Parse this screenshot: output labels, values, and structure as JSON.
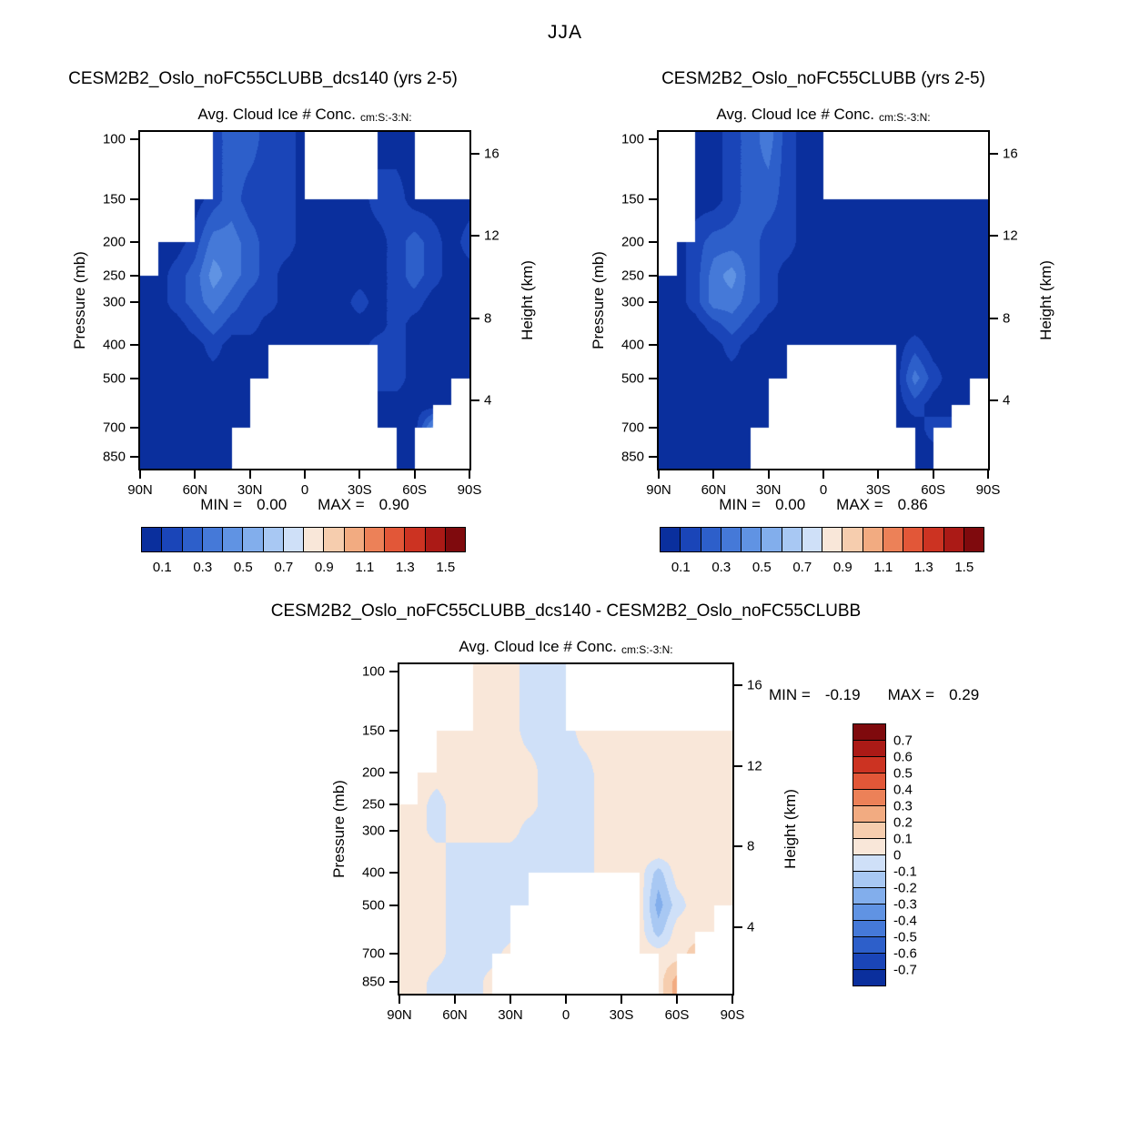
{
  "figure_title": "JJA",
  "chart_data": {
    "type": "heatmap",
    "season": "JJA",
    "variable": "Avg. Cloud Ice # Conc.",
    "units": "cm:S:-3:N:",
    "ylabel": "Pressure (mb)",
    "y2label": "Height (km)",
    "x_ticks": [
      "90N",
      "60N",
      "30N",
      "0",
      "30S",
      "60S",
      "90S"
    ],
    "pressure_ticks": [
      100,
      150,
      200,
      250,
      300,
      400,
      500,
      700,
      850
    ],
    "height_ticks": [
      16,
      12,
      8,
      4
    ],
    "p_top": 95,
    "p_bot": 920,
    "bin_size": 0.1,
    "colormap": [
      "#0a2f9d",
      "#1a45b8",
      "#2d5fca",
      "#4579d8",
      "#6093e3",
      "#82aeec",
      "#a8c8f3",
      "#cfe0f8",
      "#f9e7d9",
      "#f6cdae",
      "#f2ab81",
      "#ec8158",
      "#e25738",
      "#cc3322",
      "#ab1a16",
      "#7f0a0d"
    ],
    "cbar_labels": [
      "0.1",
      "0.3",
      "0.5",
      "0.7",
      "0.9",
      "1.1",
      "1.3",
      "1.5"
    ],
    "diff_cbar_labels": [
      "0.7",
      "0.6",
      "0.5",
      "0.4",
      "0.3",
      "0.2",
      "0.1",
      "0",
      "-0.1",
      "-0.2",
      "-0.3",
      "-0.4",
      "-0.5",
      "-0.6",
      "-0.7"
    ],
    "grid_lats": [
      90,
      80,
      70,
      60,
      50,
      40,
      30,
      20,
      10,
      0,
      -10,
      -20,
      -30,
      -40,
      -50,
      -60,
      -70,
      -80,
      -90
    ],
    "grid_levels": [
      100,
      150,
      200,
      250,
      300,
      350,
      400,
      500,
      600,
      700,
      850
    ],
    "panels": [
      {
        "id": "a",
        "title": "CESM2B2_Oslo_noFC55CLUBB_dcs140 (yrs 2-5)",
        "subtitle": "Avg. Cloud Ice # Conc.",
        "units": "cm:S:-3:N:",
        "min_label": "MIN =",
        "min_value": "0.00",
        "max_label": "MAX =",
        "max_value": "0.90",
        "bin_start": 0.1,
        "values": [
          [
            null,
            null,
            null,
            null,
            0.15,
            0.25,
            0.25,
            0.15,
            0.15,
            0.05,
            null,
            null,
            null,
            0.05,
            0.05,
            0.05,
            null,
            null,
            null
          ],
          [
            null,
            null,
            null,
            0.05,
            0.15,
            0.25,
            0.15,
            0.15,
            0.15,
            0.05,
            0.05,
            0.05,
            0.05,
            0.15,
            0.15,
            0.05,
            0.05,
            0.05,
            0.05
          ],
          [
            null,
            0.05,
            0.05,
            0.15,
            0.35,
            0.35,
            0.25,
            0.15,
            0.15,
            0.05,
            0.05,
            0.05,
            0.05,
            0.05,
            0.15,
            0.25,
            0.15,
            0.05,
            0.15
          ],
          [
            0.05,
            0.05,
            0.15,
            0.25,
            0.45,
            0.35,
            0.25,
            0.15,
            0.05,
            0.05,
            0.05,
            0.05,
            0.05,
            0.05,
            0.15,
            0.25,
            0.15,
            0.05,
            0.05
          ],
          [
            0.05,
            0.05,
            0.15,
            0.25,
            0.35,
            0.25,
            0.15,
            0.15,
            0.05,
            0.05,
            0.05,
            0.05,
            0.15,
            0.05,
            0.15,
            0.15,
            0.05,
            0.05,
            0.05
          ],
          [
            0.05,
            0.05,
            0.05,
            0.15,
            0.25,
            0.15,
            0.15,
            0.05,
            0.05,
            0.05,
            0.05,
            0.05,
            0.05,
            0.05,
            0.15,
            0.05,
            0.05,
            0.05,
            0.05
          ],
          [
            0.05,
            0.05,
            0.05,
            0.05,
            0.15,
            0.05,
            0.05,
            0.05,
            0.05,
            0.05,
            0.05,
            0.05,
            0.05,
            0.15,
            0.15,
            0.05,
            0.05,
            0.05,
            0.05
          ],
          [
            0.05,
            0.05,
            0.05,
            0.05,
            0.05,
            0.05,
            0.05,
            0.05,
            null,
            null,
            null,
            null,
            null,
            0.15,
            0.15,
            0.05,
            0.05,
            0.05,
            0.05
          ],
          [
            0.05,
            0.05,
            0.05,
            0.05,
            0.05,
            0.05,
            0.05,
            null,
            null,
            null,
            null,
            null,
            null,
            0.05,
            0.05,
            0.05,
            0.05,
            0.05,
            null
          ],
          [
            0.05,
            0.05,
            0.05,
            0.05,
            0.05,
            0.05,
            0.05,
            null,
            null,
            null,
            null,
            null,
            null,
            0.05,
            0.05,
            0.05,
            0.45,
            null,
            null
          ],
          [
            0.05,
            0.05,
            0.05,
            0.05,
            0.05,
            0.05,
            null,
            null,
            null,
            null,
            null,
            null,
            null,
            null,
            0.05,
            0.05,
            null,
            null,
            null
          ]
        ]
      },
      {
        "id": "b",
        "title": "CESM2B2_Oslo_noFC55CLUBB (yrs 2-5)",
        "subtitle": "Avg. Cloud Ice # Conc.",
        "units": "cm:S:-3:N:",
        "min_label": "MIN =",
        "min_value": "0.00",
        "max_label": "MAX =",
        "max_value": "0.86",
        "bin_start": 0.1,
        "values": [
          [
            null,
            null,
            0.05,
            0.05,
            0.15,
            0.25,
            0.35,
            0.15,
            0.05,
            0.05,
            null,
            null,
            null,
            null,
            null,
            null,
            null,
            null,
            null
          ],
          [
            null,
            null,
            0.05,
            0.05,
            0.15,
            0.25,
            0.25,
            0.15,
            0.05,
            0.05,
            0.05,
            0.05,
            0.05,
            0.05,
            0.05,
            0.05,
            0.05,
            0.05,
            0.05
          ],
          [
            null,
            0.05,
            0.15,
            0.25,
            0.25,
            0.25,
            0.15,
            0.15,
            0.05,
            0.05,
            0.05,
            0.05,
            0.05,
            0.05,
            0.05,
            0.05,
            0.05,
            0.05,
            0.05
          ],
          [
            0.05,
            0.05,
            0.15,
            0.35,
            0.45,
            0.25,
            0.15,
            0.05,
            0.05,
            0.05,
            0.05,
            0.05,
            0.05,
            0.05,
            0.05,
            0.05,
            0.05,
            0.05,
            0.05
          ],
          [
            0.05,
            0.05,
            0.15,
            0.35,
            0.35,
            0.25,
            0.15,
            0.05,
            0.05,
            0.05,
            0.05,
            0.05,
            0.05,
            0.05,
            0.05,
            0.05,
            0.05,
            0.05,
            0.05
          ],
          [
            0.05,
            0.05,
            0.05,
            0.15,
            0.25,
            0.15,
            0.05,
            0.05,
            0.05,
            0.05,
            0.05,
            0.05,
            0.05,
            0.05,
            0.05,
            0.05,
            0.05,
            0.05,
            0.05
          ],
          [
            0.05,
            0.05,
            0.05,
            0.05,
            0.15,
            0.05,
            0.05,
            0.05,
            0.05,
            0.05,
            0.05,
            0.05,
            0.05,
            0.05,
            0.15,
            0.05,
            0.05,
            0.05,
            0.05
          ],
          [
            0.05,
            0.05,
            0.05,
            0.05,
            0.05,
            0.05,
            0.05,
            0.05,
            null,
            null,
            null,
            null,
            null,
            0.05,
            0.35,
            0.15,
            0.05,
            0.05,
            0.05
          ],
          [
            0.05,
            0.05,
            0.05,
            0.05,
            0.05,
            0.05,
            0.05,
            null,
            null,
            null,
            null,
            null,
            null,
            0.05,
            0.15,
            0.05,
            0.05,
            0.05,
            null
          ],
          [
            0.05,
            0.05,
            0.05,
            0.05,
            0.05,
            0.05,
            0.05,
            null,
            null,
            null,
            null,
            null,
            null,
            0.05,
            0.05,
            0.15,
            0.15,
            null,
            null
          ],
          [
            0.05,
            0.05,
            0.05,
            0.05,
            0.05,
            0.05,
            null,
            null,
            null,
            null,
            null,
            null,
            null,
            null,
            0.05,
            0.05,
            null,
            null,
            null
          ]
        ]
      },
      {
        "id": "diff",
        "title": "CESM2B2_Oslo_noFC55CLUBB_dcs140 - CESM2B2_Oslo_noFC55CLUBB",
        "subtitle": "Avg. Cloud Ice # Conc.",
        "units": "cm:S:-3:N:",
        "min_label": "MIN =",
        "min_value": "-0.19",
        "max_label": "MAX =",
        "max_value": "0.29",
        "bin_start": -0.7,
        "values": [
          [
            null,
            null,
            null,
            null,
            0.05,
            0.05,
            0.05,
            -0.05,
            -0.05,
            -0.05,
            null,
            null,
            null,
            null,
            null,
            null,
            null,
            null,
            null
          ],
          [
            null,
            null,
            0.05,
            0.05,
            0.05,
            0.05,
            0.05,
            -0.05,
            -0.05,
            -0.05,
            0.05,
            0.05,
            0.05,
            0.05,
            0.05,
            0.05,
            0.05,
            0.05,
            0.05
          ],
          [
            null,
            0.05,
            0.05,
            0.05,
            0.05,
            0.05,
            0.05,
            0.05,
            -0.05,
            -0.05,
            -0.05,
            0.05,
            0.05,
            0.05,
            0.05,
            0.05,
            0.05,
            0.05,
            0.05
          ],
          [
            0.05,
            0.05,
            -0.05,
            0.05,
            0.05,
            0.05,
            0.05,
            0.05,
            -0.05,
            -0.05,
            -0.05,
            0.05,
            0.05,
            0.05,
            0.05,
            0.05,
            0.05,
            0.05,
            0.05
          ],
          [
            0.05,
            0.05,
            -0.05,
            0.05,
            0.05,
            0.05,
            0.05,
            -0.05,
            -0.05,
            -0.05,
            -0.05,
            0.05,
            0.05,
            0.05,
            0.05,
            0.05,
            0.05,
            0.05,
            0.05
          ],
          [
            0.05,
            0.05,
            0.05,
            -0.05,
            -0.05,
            -0.05,
            -0.05,
            -0.05,
            -0.05,
            -0.05,
            -0.05,
            0.05,
            0.05,
            0.05,
            0.05,
            0.05,
            0.05,
            0.05,
            0.05
          ],
          [
            0.05,
            0.05,
            0.05,
            -0.05,
            -0.05,
            -0.05,
            -0.05,
            -0.05,
            -0.05,
            -0.05,
            -0.05,
            0.05,
            0.05,
            0.05,
            -0.15,
            0.05,
            0.05,
            0.05,
            0.05
          ],
          [
            0.05,
            0.05,
            0.05,
            -0.05,
            -0.05,
            -0.05,
            -0.05,
            -0.05,
            null,
            null,
            null,
            null,
            null,
            0.05,
            -0.25,
            -0.05,
            0.05,
            0.05,
            0.05
          ],
          [
            0.05,
            0.05,
            0.05,
            -0.05,
            -0.05,
            -0.05,
            -0.05,
            null,
            null,
            null,
            null,
            null,
            null,
            0.05,
            -0.15,
            0.05,
            0.05,
            0.05,
            null
          ],
          [
            0.05,
            0.05,
            0.05,
            -0.05,
            -0.05,
            -0.05,
            0.05,
            null,
            null,
            null,
            null,
            null,
            null,
            0.05,
            0.05,
            0.05,
            0.15,
            null,
            null
          ],
          [
            0.05,
            0.05,
            -0.05,
            -0.05,
            -0.05,
            0.05,
            null,
            null,
            null,
            null,
            null,
            null,
            null,
            null,
            0.05,
            0.25,
            null,
            null,
            null
          ]
        ]
      }
    ]
  }
}
